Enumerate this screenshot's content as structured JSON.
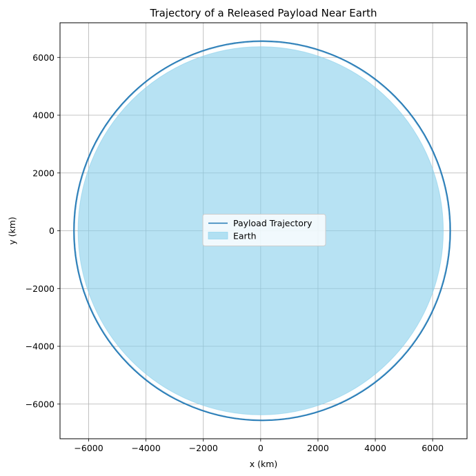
{
  "chart_data": {
    "type": "line",
    "title": "Trajectory of a Released Payload Near Earth",
    "xlabel": "x (km)",
    "ylabel": "y (km)",
    "xlim": [
      -7000,
      7200
    ],
    "ylim": [
      -7200,
      7200
    ],
    "xticks": [
      -6000,
      -4000,
      -2000,
      0,
      2000,
      4000,
      6000
    ],
    "yticks": [
      -6000,
      -4000,
      -2000,
      0,
      2000,
      4000,
      6000
    ],
    "xtick_labels": [
      "−6000",
      "−4000",
      "−2000",
      "0",
      "2000",
      "4000",
      "6000"
    ],
    "ytick_labels": [
      "−6000",
      "−4000",
      "−2000",
      "0",
      "2000",
      "4000",
      "6000"
    ],
    "grid": true,
    "legend_position": "center",
    "series": [
      {
        "name": "Payload Trajectory",
        "kind": "line",
        "color": "#1f77b4",
        "shape": "circular orbit",
        "radius_km": 6570,
        "center_km": [
          50,
          0
        ]
      },
      {
        "name": "Earth",
        "kind": "filled circle",
        "color": "#87ceeb",
        "opacity": 0.6,
        "radius_km": 6371,
        "center_km": [
          0,
          0
        ]
      }
    ]
  }
}
